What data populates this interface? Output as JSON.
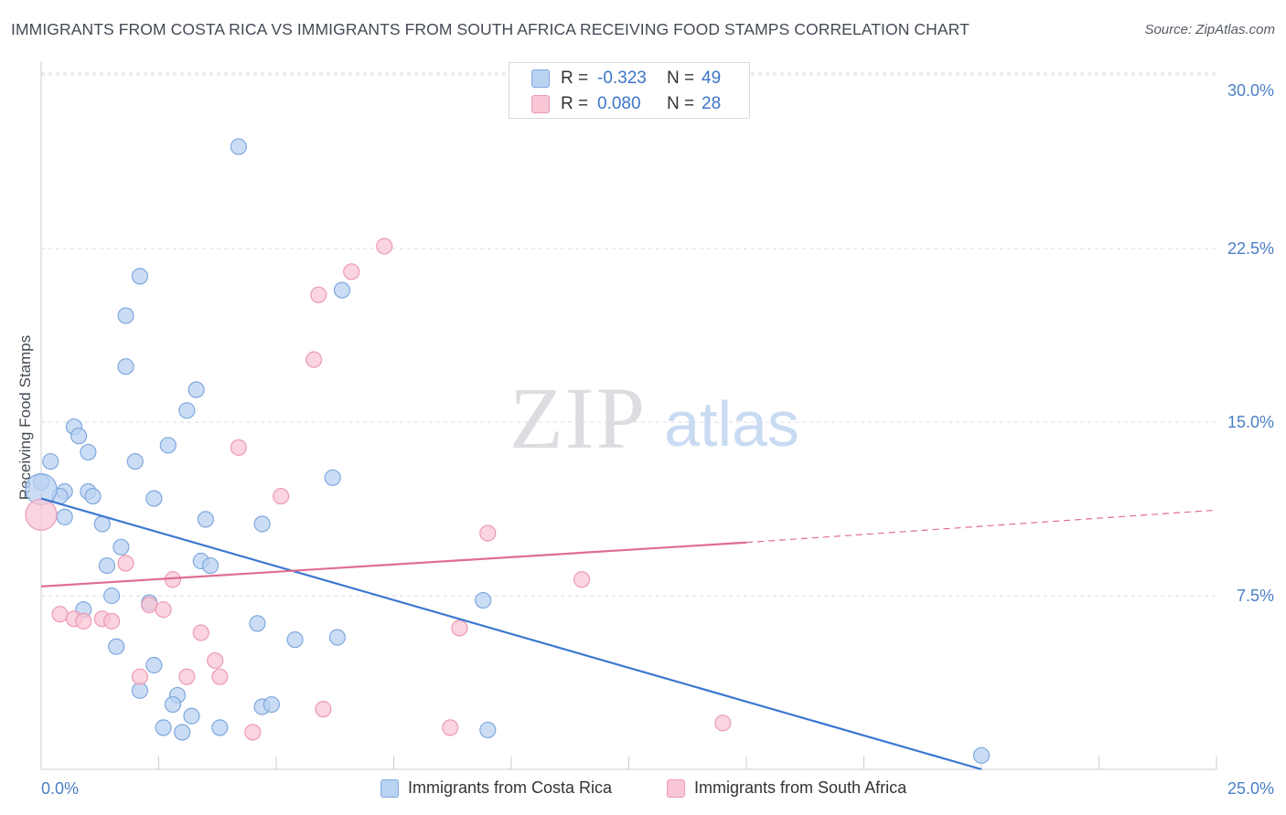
{
  "title": "IMMIGRANTS FROM COSTA RICA VS IMMIGRANTS FROM SOUTH AFRICA RECEIVING FOOD STAMPS CORRELATION CHART",
  "source": "Source: ZipAtlas.com",
  "watermark": {
    "zip": "ZIP",
    "atlas": "atlas"
  },
  "legend": {
    "rows": [
      {
        "r_label": "R =",
        "r_value": "-0.323",
        "n_label": "N =",
        "n_value": "49"
      },
      {
        "r_label": "R =",
        "r_value": "0.080",
        "n_label": "N =",
        "n_value": "28"
      }
    ]
  },
  "bottom_legend": [
    {
      "label": "Immigrants from Costa Rica"
    },
    {
      "label": "Immigrants from South Africa"
    }
  ],
  "colors": {
    "blue_fill": "#b9d2f2",
    "blue_stroke": "#7ea8de",
    "blue_line": "#3a78d0",
    "pink_fill": "#f8c6d4",
    "pink_stroke": "#ec9bb3",
    "pink_line": "#e06d94",
    "grid": "#d8dbe0",
    "tick_text": "#4a7fc6"
  },
  "chart_data": {
    "type": "scatter",
    "title": "IMMIGRANTS FROM COSTA RICA VS IMMIGRANTS FROM SOUTH AFRICA RECEIVING FOOD STAMPS CORRELATION CHART",
    "xlabel": "",
    "ylabel": "Receiving Food Stamps",
    "xlim": [
      0,
      25
    ],
    "ylim": [
      0,
      30
    ],
    "x_ticks": [
      0,
      25
    ],
    "x_tick_labels": [
      "0.0%",
      "25.0%"
    ],
    "y_ticks": [
      7.5,
      15,
      22.5,
      30
    ],
    "y_tick_labels": [
      "7.5%",
      "15.0%",
      "22.5%",
      "30.0%"
    ],
    "grid": true,
    "legend_position": "top-center",
    "series": [
      {
        "name": "Immigrants from Costa Rica",
        "points": [
          [
            4.2,
            26.9
          ],
          [
            2.1,
            21.3
          ],
          [
            1.8,
            19.6
          ],
          [
            6.4,
            20.7
          ],
          [
            1.8,
            17.4
          ],
          [
            3.3,
            16.4
          ],
          [
            3.1,
            15.5
          ],
          [
            0.7,
            14.8
          ],
          [
            0.8,
            14.4
          ],
          [
            1.0,
            13.7
          ],
          [
            2.7,
            14.0
          ],
          [
            0.2,
            13.3
          ],
          [
            2.0,
            13.3
          ],
          [
            6.2,
            12.6
          ],
          [
            0.0,
            12.4
          ],
          [
            0.5,
            12.0
          ],
          [
            1.0,
            12.0
          ],
          [
            0.4,
            11.8
          ],
          [
            1.1,
            11.8
          ],
          [
            2.4,
            11.7
          ],
          [
            0.5,
            10.9
          ],
          [
            1.3,
            10.6
          ],
          [
            3.5,
            10.8
          ],
          [
            4.7,
            10.6
          ],
          [
            1.7,
            9.6
          ],
          [
            3.4,
            9.0
          ],
          [
            1.4,
            8.8
          ],
          [
            3.6,
            8.8
          ],
          [
            1.5,
            7.5
          ],
          [
            9.4,
            7.3
          ],
          [
            2.3,
            7.2
          ],
          [
            0.9,
            6.9
          ],
          [
            4.6,
            6.3
          ],
          [
            6.3,
            5.7
          ],
          [
            5.4,
            5.6
          ],
          [
            1.6,
            5.3
          ],
          [
            2.4,
            4.5
          ],
          [
            2.1,
            3.4
          ],
          [
            2.9,
            3.2
          ],
          [
            2.8,
            2.8
          ],
          [
            4.7,
            2.7
          ],
          [
            4.9,
            2.8
          ],
          [
            3.2,
            2.3
          ],
          [
            2.6,
            1.8
          ],
          [
            3.0,
            1.6
          ],
          [
            3.8,
            1.8
          ],
          [
            9.5,
            1.7
          ],
          [
            20.0,
            0.6
          ],
          [
            0.0,
            12.1
          ]
        ]
      },
      {
        "name": "Immigrants from South Africa",
        "points": [
          [
            7.3,
            22.6
          ],
          [
            6.6,
            21.5
          ],
          [
            5.9,
            20.5
          ],
          [
            5.8,
            17.7
          ],
          [
            4.2,
            13.9
          ],
          [
            5.1,
            11.8
          ],
          [
            9.5,
            10.2
          ],
          [
            1.8,
            8.9
          ],
          [
            2.8,
            8.2
          ],
          [
            11.5,
            8.2
          ],
          [
            2.3,
            7.1
          ],
          [
            2.6,
            6.9
          ],
          [
            0.4,
            6.7
          ],
          [
            0.7,
            6.5
          ],
          [
            1.3,
            6.5
          ],
          [
            0.9,
            6.4
          ],
          [
            1.5,
            6.4
          ],
          [
            8.9,
            6.1
          ],
          [
            3.4,
            5.9
          ],
          [
            3.7,
            4.7
          ],
          [
            2.1,
            4.0
          ],
          [
            3.1,
            4.0
          ],
          [
            3.8,
            4.0
          ],
          [
            6.0,
            2.6
          ],
          [
            8.7,
            1.8
          ],
          [
            14.5,
            2.0
          ],
          [
            4.5,
            1.6
          ],
          [
            0.0,
            11.0
          ]
        ]
      }
    ],
    "trend_lines": [
      {
        "series": "Immigrants from Costa Rica",
        "x_start": 0,
        "y_start": 11.7,
        "x_end": 20.0,
        "y_end": 0.0
      },
      {
        "series": "Immigrants from South Africa",
        "x_start": 0,
        "y_start": 7.9,
        "x_end": 15.0,
        "y_end": 9.8,
        "dashed_to_x": 25,
        "dashed_to_y": 11.2
      }
    ]
  }
}
